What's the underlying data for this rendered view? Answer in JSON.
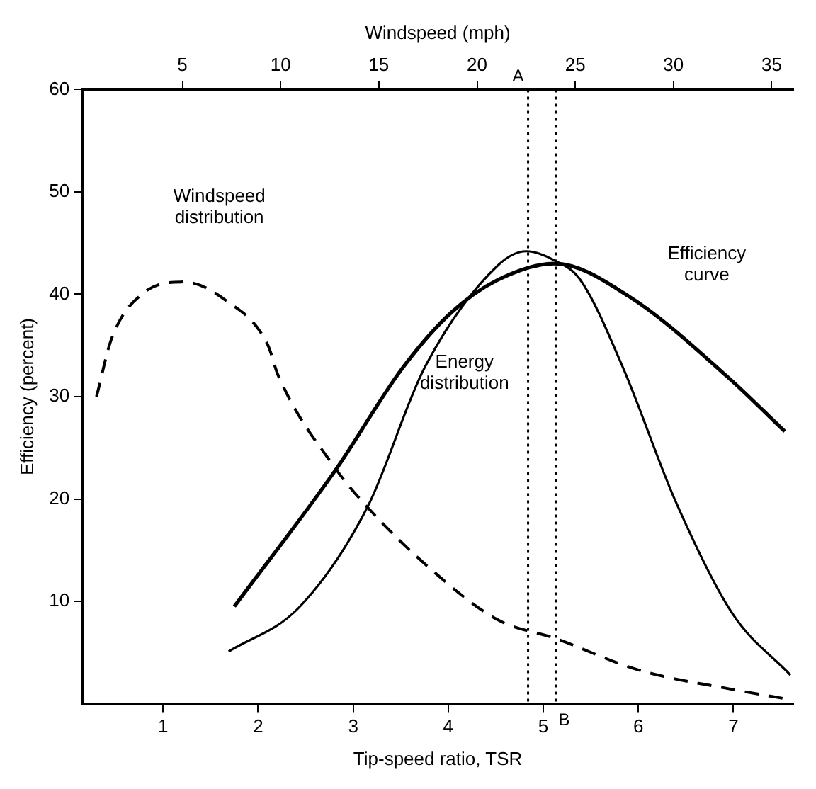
{
  "chart_data": {
    "type": "line",
    "xlabel": "Tip-speed ratio, TSR",
    "ylabel": "Efficiency (percent)",
    "x2label": "Windspeed (mph)",
    "xlim": [
      0.15,
      7.63
    ],
    "xticks": [
      1,
      2,
      3,
      4,
      5,
      6,
      7
    ],
    "x2lim": [
      -0.1,
      36.1
    ],
    "x2ticks": [
      5,
      10,
      15,
      20,
      25,
      30,
      35
    ],
    "ylim": [
      0,
      60
    ],
    "yticks": [
      10,
      20,
      30,
      40,
      50,
      60
    ],
    "grid": false,
    "legend": false,
    "marker": "none",
    "series": [
      {
        "name": "Windspeed distribution",
        "color": "#000000",
        "line_style": "dashed",
        "x": [
          0.3,
          0.46,
          0.79,
          1.22,
          1.66,
          2.1,
          2.21,
          2.82,
          3.15,
          3.81,
          4.52,
          5.12,
          6.0,
          6.99,
          7.6
        ],
        "values": [
          30,
          35.7,
          40.1,
          41.2,
          39.4,
          35.1,
          32.1,
          22.9,
          19.2,
          13.2,
          8.2,
          6.4,
          3.3,
          1.4,
          0.4
        ]
      },
      {
        "name": "Efficiency curve",
        "color": "#000000",
        "line_style": "solid",
        "x": [
          1.75,
          2.82,
          3.52,
          4.03,
          4.52,
          5.12,
          5.9,
          6.93,
          7.54
        ],
        "values": [
          9.5,
          22.9,
          32.8,
          38.2,
          41.4,
          43.0,
          39.8,
          32.0,
          26.6
        ]
      },
      {
        "name": "Energy distribution",
        "color": "#000000",
        "line_style": "solid",
        "x": [
          1.69,
          2.43,
          3.15,
          3.75,
          4.52,
          4.82,
          5.12,
          5.39,
          5.84,
          6.39,
          6.99,
          7.6
        ],
        "values": [
          5.1,
          9.4,
          19.2,
          32.8,
          42.8,
          44.2,
          43.3,
          41.4,
          32.8,
          19.8,
          8.8,
          2.8
        ]
      }
    ],
    "ref_lines": [
      {
        "axis": "x",
        "value": 4.84,
        "label": "A",
        "line_style": "dotted",
        "color": "#000000"
      },
      {
        "axis": "x",
        "value": 5.13,
        "label": "B",
        "line_style": "dotted",
        "color": "#000000"
      }
    ]
  }
}
